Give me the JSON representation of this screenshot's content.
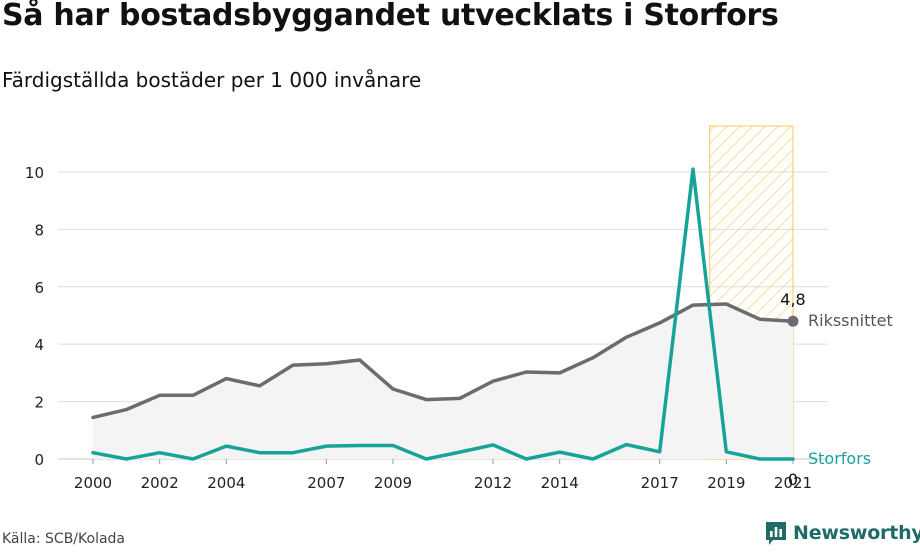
{
  "header": {
    "title": "Så har bostadsbyggandet utvecklats i Storfors",
    "subtitle": "Färdigställda bostäder per 1 000 invånare"
  },
  "footer": {
    "source": "Källa: SCB/Kolada",
    "brand": "Newsworthy"
  },
  "colors": {
    "rikssnittet": "#6b6b70",
    "storfors": "#17a398",
    "highlight": "#f5c242",
    "grid": "#dedede",
    "area": "#f4f4f4"
  },
  "chart_data": {
    "type": "line",
    "title": "Så har bostadsbyggandet utvecklats i Storfors",
    "subtitle": "Färdigställda bostäder per 1 000 invånare",
    "x": [
      2000,
      2001,
      2002,
      2003,
      2004,
      2005,
      2006,
      2007,
      2008,
      2009,
      2010,
      2011,
      2012,
      2013,
      2014,
      2015,
      2016,
      2017,
      2018,
      2019,
      2020,
      2021
    ],
    "x_tick_labels": [
      "2000",
      "2002",
      "2004",
      "2007",
      "2009",
      "2012",
      "2014",
      "2017",
      "2019",
      "2021"
    ],
    "y_ticks": [
      0,
      2,
      4,
      6,
      8,
      10
    ],
    "ylim": [
      0,
      11.6
    ],
    "grid": true,
    "highlight_range": [
      2019,
      2021
    ],
    "series": [
      {
        "name": "Rikssnittet",
        "values": [
          1.45,
          1.72,
          2.22,
          2.22,
          2.8,
          2.55,
          3.27,
          3.32,
          3.45,
          2.44,
          2.07,
          2.11,
          2.71,
          3.03,
          3.0,
          3.53,
          4.24,
          4.74,
          5.36,
          5.4,
          4.87,
          4.8
        ],
        "end_label": "4,8"
      },
      {
        "name": "Storfors",
        "values": [
          0.22,
          0.0,
          0.22,
          0.0,
          0.45,
          0.22,
          0.22,
          0.45,
          0.47,
          0.47,
          0.0,
          0.24,
          0.49,
          0.0,
          0.24,
          0.0,
          0.5,
          0.25,
          10.1,
          0.25,
          0.0,
          0.0
        ],
        "end_label": "0"
      }
    ]
  }
}
